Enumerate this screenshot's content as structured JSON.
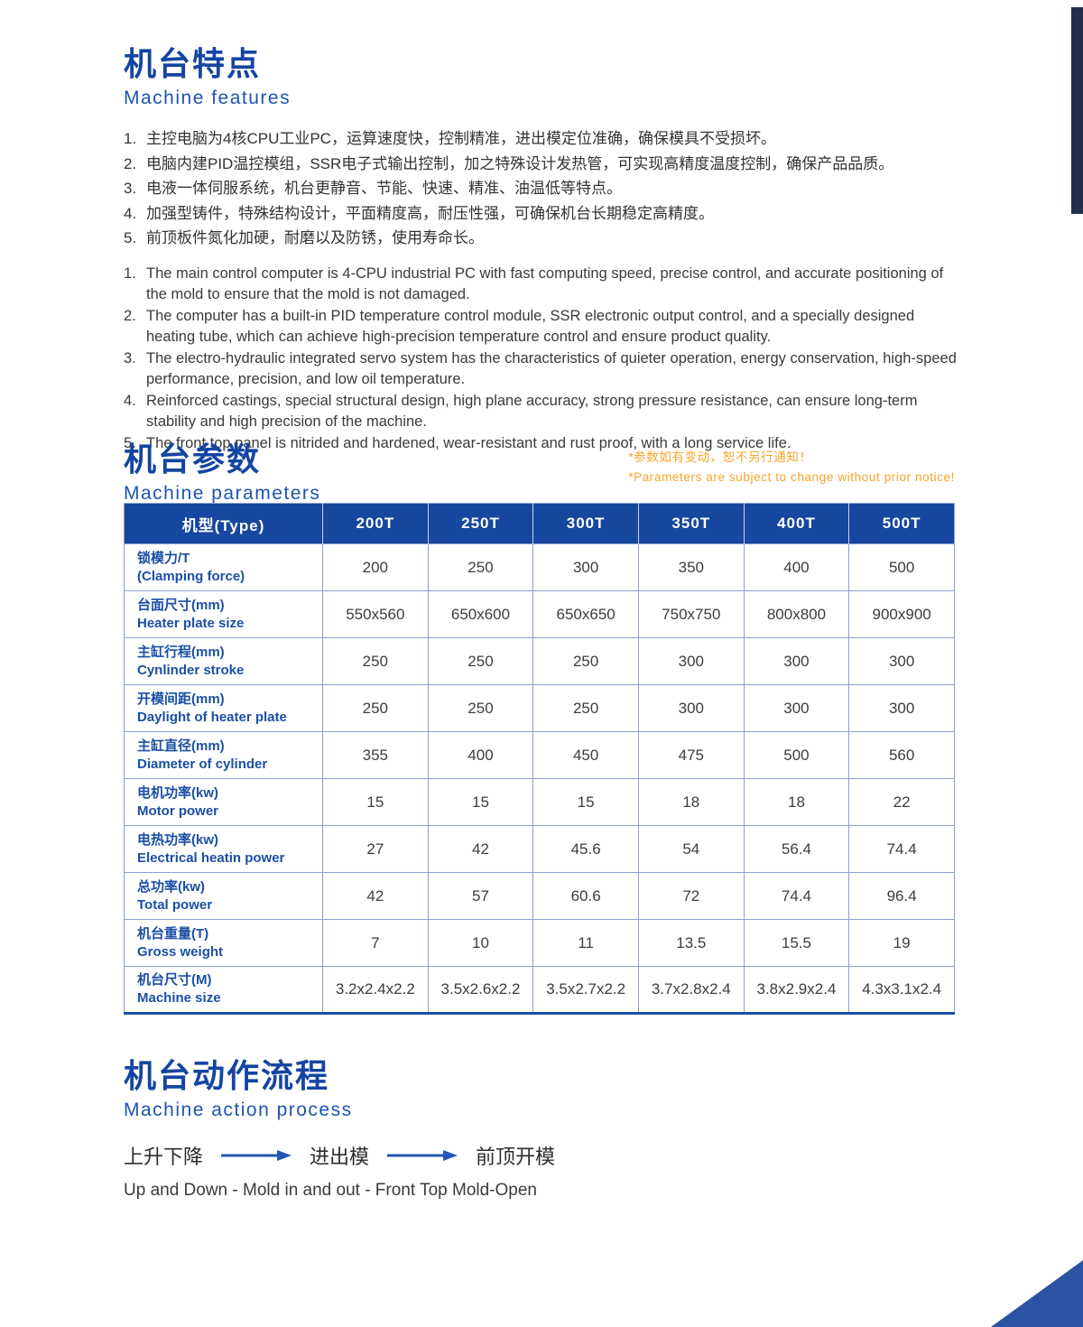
{
  "colors": {
    "heading_blue": "#1545a2",
    "subheading_blue": "#1d55af",
    "table_header_bg": "#17479e",
    "row_label_blue": "#1b4fa5",
    "table_border_blue": "#8d9fd2",
    "body_text": "#3a3a3a",
    "note_orange": "#f7a42a",
    "arrow_blue": "#2356b4",
    "side_bar_navy": "#22304e",
    "corner_triangle_blue": "#2b52a3"
  },
  "features": {
    "title_cn": "机台特点",
    "title_en": "Machine features",
    "items_cn": [
      {
        "num": "1.",
        "text": "主控电脑为4核CPU工业PC，运算速度快，控制精准，进出模定位准确，确保模具不受损坏。"
      },
      {
        "num": "2.",
        "text": "电脑内建PID温控模组，SSR电子式输出控制，加之特殊设计发热管，可实现高精度温度控制，确保产品品质。"
      },
      {
        "num": "3.",
        "text": "电液一体伺服系统，机台更静音、节能、快速、精准、油温低等特点。"
      },
      {
        "num": "4.",
        "text": "加强型铸件，特殊结构设计，平面精度高，耐压性强，可确保机台长期稳定高精度。"
      },
      {
        "num": "5.",
        "text": "前顶板件氮化加硬，耐磨以及防锈，使用寿命长。"
      }
    ],
    "items_en": [
      {
        "num": "1.",
        "text": "The main control computer is 4-CPU industrial PC with fast computing speed, precise control, and accurate positioning of the mold to ensure that the mold is not damaged."
      },
      {
        "num": "2.",
        "text": "The computer has a built-in PID temperature control module, SSR electronic output control, and a specially designed heating tube, which can achieve high-precision temperature control and ensure product quality."
      },
      {
        "num": "3.",
        "text": "The electro-hydraulic integrated servo system has the characteristics of quieter operation, energy conservation, high-speed performance, precision, and low oil temperature."
      },
      {
        "num": "4.",
        "text": "Reinforced castings, special structural design, high plane accuracy, strong pressure resistance, can ensure long-term stability and high precision of the machine."
      },
      {
        "num": "5.",
        "text": "The front top panel is nitrided and hardened, wear-resistant and rust proof, with a long service life."
      }
    ]
  },
  "parameters": {
    "title_cn": "机台参数",
    "title_en": "Machine parameters",
    "note_cn": "*参数如有变动，恕不另行通知！",
    "note_en": "*Parameters are subject to change without prior notice!"
  },
  "table": {
    "header": {
      "type_label": "机型(Type)",
      "models": [
        "200T",
        "250T",
        "300T",
        "350T",
        "400T",
        "500T"
      ]
    },
    "rows": [
      {
        "label_cn": "锁模力/T",
        "label_en": "(Clamping force)",
        "values": [
          "200",
          "250",
          "300",
          "350",
          "400",
          "500"
        ]
      },
      {
        "label_cn": "台面尺寸(mm)",
        "label_en": "Heater plate size",
        "values": [
          "550x560",
          "650x600",
          "650x650",
          "750x750",
          "800x800",
          "900x900"
        ]
      },
      {
        "label_cn": "主缸行程(mm)",
        "label_en": "Cynlinder stroke",
        "values": [
          "250",
          "250",
          "250",
          "300",
          "300",
          "300"
        ]
      },
      {
        "label_cn": "开模间距(mm)",
        "label_en": "Daylight of heater plate",
        "values": [
          "250",
          "250",
          "250",
          "300",
          "300",
          "300"
        ]
      },
      {
        "label_cn": "主缸直径(mm)",
        "label_en": "Diameter of cylinder",
        "values": [
          "355",
          "400",
          "450",
          "475",
          "500",
          "560"
        ]
      },
      {
        "label_cn": "电机功率(kw)",
        "label_en": "Motor power",
        "values": [
          "15",
          "15",
          "15",
          "18",
          "18",
          "22"
        ]
      },
      {
        "label_cn": "电热功率(kw)",
        "label_en": "Electrical heatin power",
        "values": [
          "27",
          "42",
          "45.6",
          "54",
          "56.4",
          "74.4"
        ]
      },
      {
        "label_cn": "总功率(kw)",
        "label_en": "Total power",
        "values": [
          "42",
          "57",
          "60.6",
          "72",
          "74.4",
          "96.4"
        ]
      },
      {
        "label_cn": "机台重量(T)",
        "label_en": "Gross weight",
        "values": [
          "7",
          "10",
          "11",
          "13.5",
          "15.5",
          "19"
        ]
      },
      {
        "label_cn": "机台尺寸(M)",
        "label_en": "Machine size",
        "values": [
          "3.2x2.4x2.2",
          "3.5x2.6x2.2",
          "3.5x2.7x2.2",
          "3.7x2.8x2.4",
          "3.8x2.9x2.4",
          "4.3x3.1x2.4"
        ]
      }
    ]
  },
  "process": {
    "title_cn": "机台动作流程",
    "title_en": "Machine action process",
    "steps_cn": [
      "上升下降",
      "进出模",
      "前顶开模"
    ],
    "steps_en": "Up and Down - Mold in and out - Front Top Mold-Open"
  }
}
